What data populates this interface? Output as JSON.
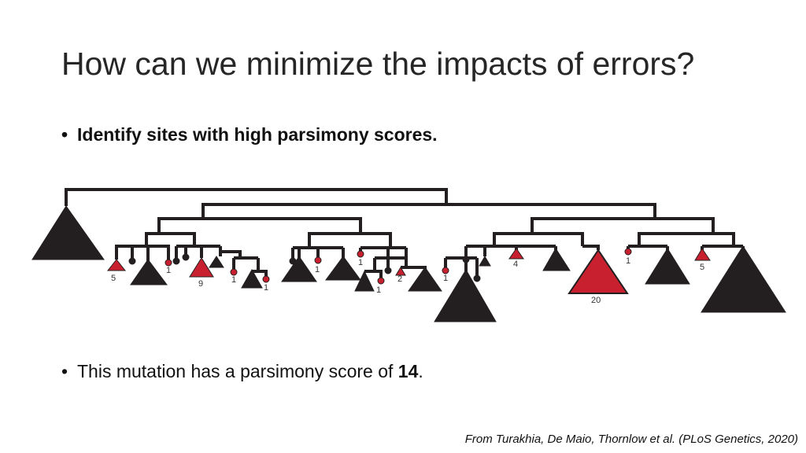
{
  "slide": {
    "title": "How can we minimize the impacts of errors?",
    "bullet1": "Identify sites with high parsimony scores.",
    "bullet2_prefix": "This mutation has a parsimony score of ",
    "bullet2_value": "14",
    "bullet2_suffix": ".",
    "bullet_symbol": "•",
    "citation": "From Turakhia, De Maio, Thornlow et al. (PLoS Genetics, 2020)"
  },
  "diagram": {
    "colors": {
      "branch": "#231f20",
      "mutation": "#c8202f"
    },
    "mutation_counts": [
      "5",
      "1",
      "9",
      "1",
      "1",
      "1",
      "1",
      "1",
      "2",
      "1",
      "4",
      "20",
      "1",
      "5"
    ]
  }
}
